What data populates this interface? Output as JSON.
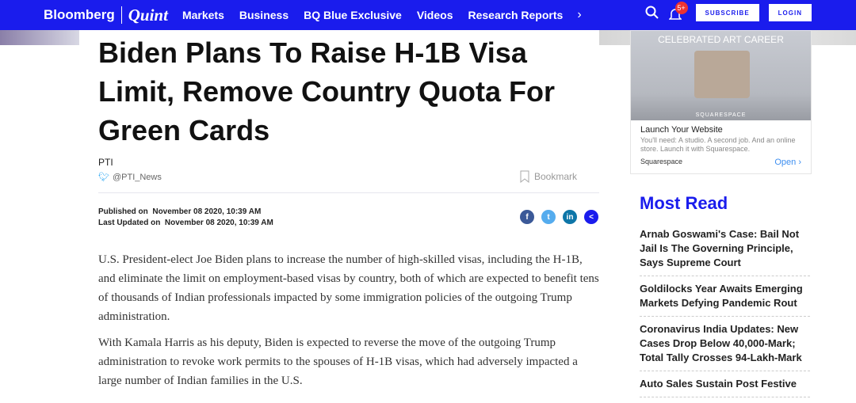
{
  "nav": {
    "logo_brand": "Bloomberg",
    "logo_sub": "Quint",
    "menu": [
      "Markets",
      "Business",
      "BQ Blue Exclusive",
      "Videos",
      "Research Reports"
    ],
    "notification_count": "5+",
    "subscribe": "SUBSCRIBE",
    "login": "LOGIN",
    "accent": "#1a1ced"
  },
  "article": {
    "title": "Biden Plans To Raise H-1B Visa Limit, Remove Country Quota For Green Cards",
    "author": "PTI",
    "twitter": "@PTI_News",
    "bookmark": "Bookmark",
    "published_label": "Published on",
    "published": "November 08 2020, 10:39 AM",
    "updated_label": "Last Updated on",
    "updated": "November 08 2020, 10:39 AM",
    "paragraphs": [
      "U.S. President-elect Joe Biden plans to increase the number of high-skilled visas, including the H-1B, and eliminate the limit on employment-based visas by country, both of which are expected to benefit tens of thousands of Indian professionals impacted by some immigration policies of the outgoing Trump administration.",
      "With Kamala Harris as his deputy, Biden is expected to reverse the move of the outgoing Trump administration to revoke work permits to the spouses of H-1B visas, which had adversely impacted a large number of Indian families in the U.S."
    ]
  },
  "ad": {
    "headline": "CELEBRATED ART CAREER",
    "logo_text": "SQUARESPACE",
    "title": "Launch Your Website",
    "desc": "You'll need: A studio. A second job. And an online store. Launch it with Squarespace.",
    "advertiser": "Squarespace",
    "cta": "Open"
  },
  "most_read": {
    "heading": "Most Read",
    "items": [
      "Arnab Goswami's Case: Bail Not Jail Is The Governing Principle, Says Supreme Court",
      "Goldilocks Year Awaits Emerging Markets Defying Pandemic Rout",
      "Coronavirus India Updates: New Cases Drop Below 40,000-Mark; Total Tally Crosses 94-Lakh-Mark",
      "Auto Sales Sustain Post Festive"
    ]
  }
}
